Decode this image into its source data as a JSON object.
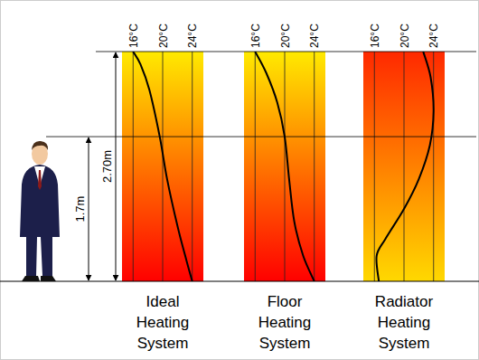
{
  "chart_data": [
    {
      "type": "line",
      "title": "Ideal Heating System",
      "x": [
        16,
        17,
        18.2,
        19.6,
        20.6,
        22,
        23.2,
        24
      ],
      "values": [
        2.7,
        2.55,
        2.25,
        1.7,
        1.2,
        0.65,
        0.25,
        0
      ],
      "xlim": [
        14.5,
        25.5
      ],
      "xticks": [
        {
          "value": 16,
          "label": "16°C"
        },
        {
          "value": 20,
          "label": "20°C"
        },
        {
          "value": 24,
          "label": "24°C"
        }
      ],
      "ylim": [
        0,
        2.7
      ],
      "grid": true,
      "tick_labels": "x",
      "annotations": [
        {
          "text": "2.70m",
          "value": 2.7
        },
        {
          "text": "1.7m",
          "value": 1.7
        }
      ]
    },
    {
      "type": "line",
      "title": "Floor Heating System",
      "x": [
        16,
        17.5,
        19,
        20,
        20.6,
        21.3,
        22.5,
        24
      ],
      "values": [
        2.7,
        2.45,
        2.1,
        1.7,
        1.2,
        0.7,
        0.3,
        0
      ],
      "xlim": [
        14.5,
        25.5
      ],
      "xticks": [
        {
          "value": 16,
          "label": "16°C"
        },
        {
          "value": 20,
          "label": "20°C"
        },
        {
          "value": 24,
          "label": "24°C"
        }
      ],
      "ylim": [
        0,
        2.7
      ],
      "grid": true,
      "tick_labels": "x"
    },
    {
      "type": "line",
      "title": "Radiator Heating System",
      "x": [
        22.6,
        23.6,
        24,
        23.5,
        22,
        20,
        17.5,
        16.3,
        16.6
      ],
      "values": [
        2.7,
        2.4,
        2.0,
        1.6,
        1.2,
        0.85,
        0.5,
        0.3,
        0
      ],
      "xlim": [
        14.5,
        25.5
      ],
      "xticks": [
        {
          "value": 16,
          "label": "16°C"
        },
        {
          "value": 20,
          "label": "20°C"
        },
        {
          "value": 24,
          "label": "24°C"
        }
      ],
      "ylim": [
        0,
        2.7
      ],
      "grid": true,
      "tick_labels": "x"
    }
  ]
}
